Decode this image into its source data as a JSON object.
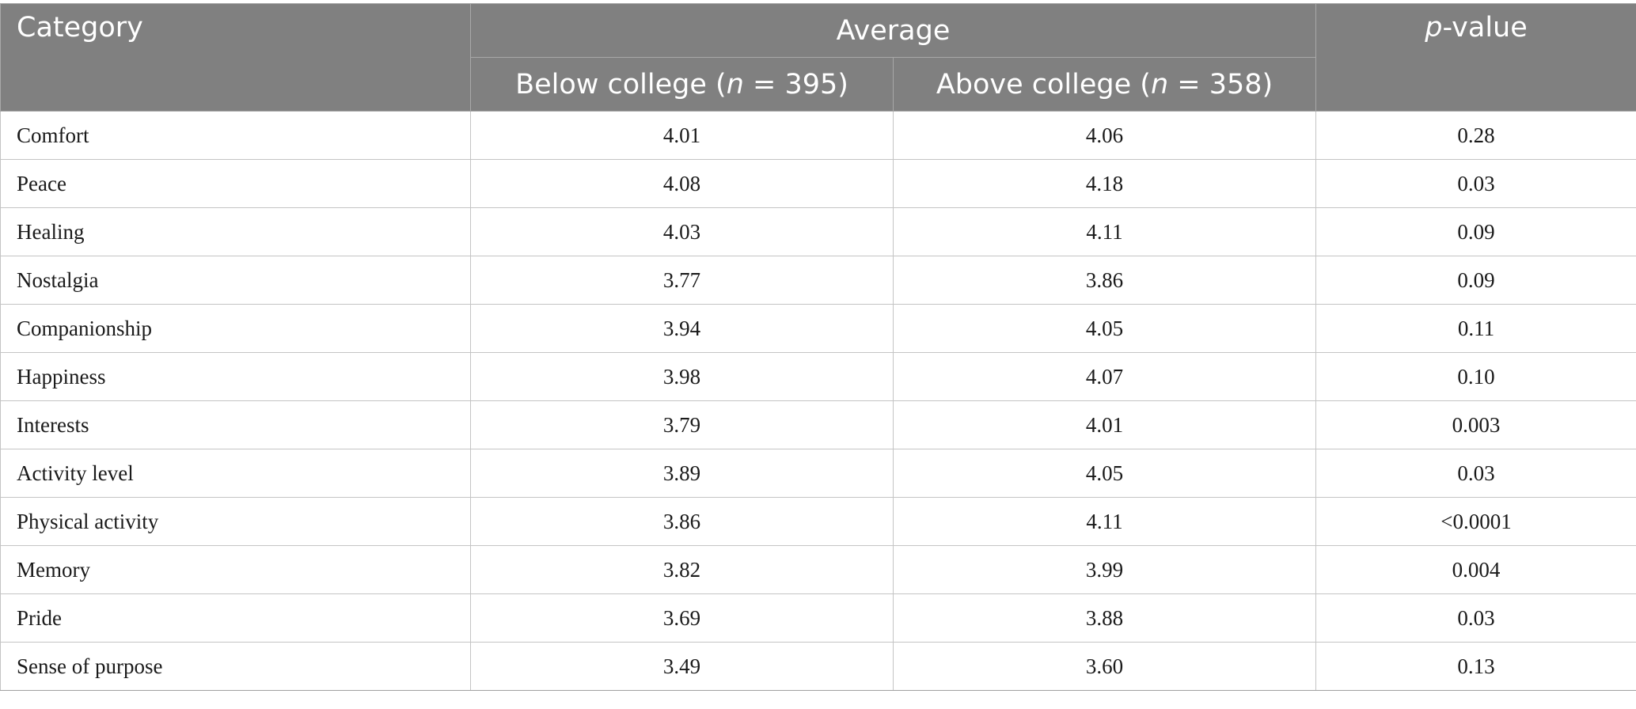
{
  "header": {
    "category": "Category",
    "average": "Average",
    "below_college": {
      "text": "Below college (",
      "n": "n",
      "value": " = 395)"
    },
    "above_college": {
      "text": "Above college (",
      "n": "n",
      "value": " = 358)"
    },
    "p_value": {
      "p": "p",
      "rest": "-value"
    }
  },
  "rows": [
    {
      "category": "Comfort",
      "below": "4.01",
      "above": "4.06",
      "p": "0.28"
    },
    {
      "category": "Peace",
      "below": "4.08",
      "above": "4.18",
      "p": "0.03"
    },
    {
      "category": "Healing",
      "below": "4.03",
      "above": "4.11",
      "p": "0.09"
    },
    {
      "category": "Nostalgia",
      "below": "3.77",
      "above": "3.86",
      "p": "0.09"
    },
    {
      "category": "Companionship",
      "below": "3.94",
      "above": "4.05",
      "p": "0.11"
    },
    {
      "category": "Happiness",
      "below": "3.98",
      "above": "4.07",
      "p": "0.10"
    },
    {
      "category": "Interests",
      "below": "3.79",
      "above": "4.01",
      "p": "0.003"
    },
    {
      "category": "Activity level",
      "below": "3.89",
      "above": "4.05",
      "p": "0.03"
    },
    {
      "category": "Physical activity",
      "below": "3.86",
      "above": "4.11",
      "p": "<0.0001"
    },
    {
      "category": "Memory",
      "below": "3.82",
      "above": "3.99",
      "p": "0.004"
    },
    {
      "category": "Pride",
      "below": "3.69",
      "above": "3.88",
      "p": "0.03"
    },
    {
      "category": "Sense of purpose",
      "below": "3.49",
      "above": "3.60",
      "p": "0.13"
    }
  ]
}
